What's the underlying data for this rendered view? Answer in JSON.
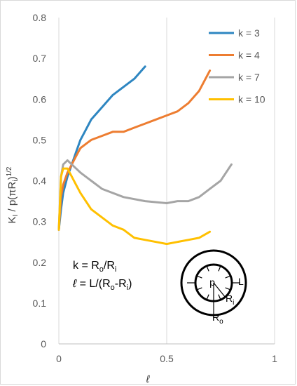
{
  "chart_data": {
    "type": "line",
    "xlabel": "ℓ",
    "ylabel": "K_I / p(πR_i)^1/2",
    "xlim": [
      0,
      1
    ],
    "ylim": [
      0,
      0.8
    ],
    "x_ticks": [
      "0",
      "0.5",
      "1"
    ],
    "y_ticks": [
      "0",
      "0.1",
      "0.2",
      "0.3",
      "0.4",
      "0.5",
      "0.6",
      "0.7",
      "0.8"
    ],
    "grid": "vertical",
    "legend_position": "top-right",
    "series": [
      {
        "name": "k = 3",
        "color": "#2e86c1",
        "points": [
          [
            0,
            0.28
          ],
          [
            0.01,
            0.33
          ],
          [
            0.02,
            0.37
          ],
          [
            0.04,
            0.41
          ],
          [
            0.06,
            0.44
          ],
          [
            0.08,
            0.47
          ],
          [
            0.1,
            0.5
          ],
          [
            0.12,
            0.52
          ],
          [
            0.15,
            0.55
          ],
          [
            0.2,
            0.58
          ],
          [
            0.25,
            0.61
          ],
          [
            0.3,
            0.63
          ],
          [
            0.35,
            0.65
          ],
          [
            0.4,
            0.68
          ]
        ]
      },
      {
        "name": "k = 4",
        "color": "#ed7d31",
        "points": [
          [
            0,
            0.28
          ],
          [
            0.01,
            0.36
          ],
          [
            0.02,
            0.39
          ],
          [
            0.04,
            0.42
          ],
          [
            0.06,
            0.44
          ],
          [
            0.08,
            0.46
          ],
          [
            0.1,
            0.48
          ],
          [
            0.15,
            0.5
          ],
          [
            0.2,
            0.51
          ],
          [
            0.25,
            0.52
          ],
          [
            0.3,
            0.52
          ],
          [
            0.35,
            0.53
          ],
          [
            0.4,
            0.54
          ],
          [
            0.45,
            0.55
          ],
          [
            0.5,
            0.56
          ],
          [
            0.55,
            0.57
          ],
          [
            0.6,
            0.59
          ],
          [
            0.65,
            0.62
          ],
          [
            0.7,
            0.67
          ]
        ]
      },
      {
        "name": "k = 7",
        "color": "#a5a5a5",
        "points": [
          [
            0,
            0.28
          ],
          [
            0.01,
            0.41
          ],
          [
            0.02,
            0.44
          ],
          [
            0.04,
            0.45
          ],
          [
            0.06,
            0.44
          ],
          [
            0.08,
            0.43
          ],
          [
            0.1,
            0.42
          ],
          [
            0.15,
            0.4
          ],
          [
            0.2,
            0.38
          ],
          [
            0.3,
            0.36
          ],
          [
            0.4,
            0.35
          ],
          [
            0.5,
            0.345
          ],
          [
            0.55,
            0.35
          ],
          [
            0.6,
            0.35
          ],
          [
            0.65,
            0.36
          ],
          [
            0.7,
            0.38
          ],
          [
            0.75,
            0.4
          ],
          [
            0.8,
            0.44
          ]
        ]
      },
      {
        "name": "k = 10",
        "color": "#ffc000",
        "points": [
          [
            0,
            0.28
          ],
          [
            0.01,
            0.41
          ],
          [
            0.02,
            0.43
          ],
          [
            0.04,
            0.43
          ],
          [
            0.06,
            0.41
          ],
          [
            0.08,
            0.39
          ],
          [
            0.1,
            0.37
          ],
          [
            0.15,
            0.33
          ],
          [
            0.2,
            0.31
          ],
          [
            0.25,
            0.29
          ],
          [
            0.3,
            0.28
          ],
          [
            0.35,
            0.26
          ],
          [
            0.4,
            0.255
          ],
          [
            0.45,
            0.25
          ],
          [
            0.5,
            0.245
          ],
          [
            0.55,
            0.25
          ],
          [
            0.6,
            0.255
          ],
          [
            0.65,
            0.26
          ],
          [
            0.7,
            0.275
          ]
        ]
      }
    ],
    "annotations": {
      "k_definition": "k = Ro/Ri",
      "l_definition": "ℓ = L/(Ro-Ri)",
      "inset": {
        "p": "p",
        "L": "L",
        "Ri": "Ri",
        "Ro": "Ro"
      }
    }
  }
}
